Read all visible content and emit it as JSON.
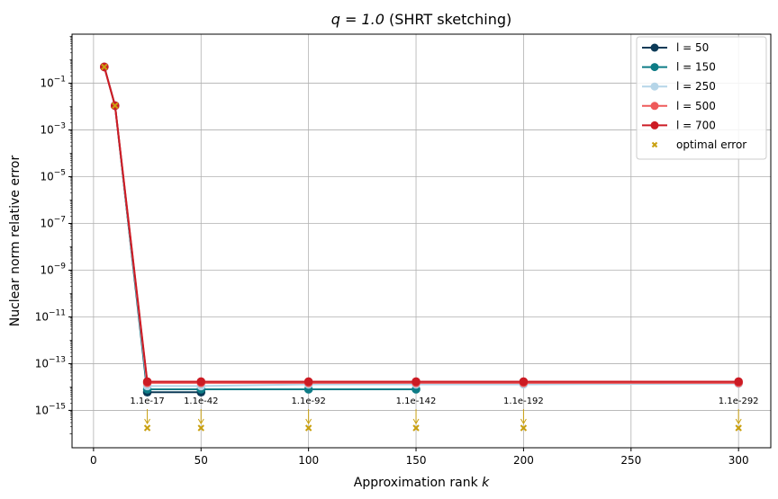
{
  "chart_data": {
    "type": "line",
    "title_prefix": "q = 1.0",
    "title_suffix": " (SHRT sketching)",
    "xlabel_prefix": "Approximation rank ",
    "xlabel_var": "k",
    "ylabel": "Nuclear norm relative error",
    "xlim": [
      -10,
      315
    ],
    "ylim_log10": [
      -16.6,
      1.1
    ],
    "yscale": "log",
    "grid": true,
    "legend_position": "top-right",
    "x_ticks": [
      0,
      50,
      100,
      150,
      200,
      250,
      300
    ],
    "y_tick_exponents": [
      -15,
      -13,
      -11,
      -9,
      -7,
      -5,
      -3,
      -1
    ],
    "x": [
      5,
      10,
      25,
      50,
      100,
      150,
      200,
      300
    ],
    "series": [
      {
        "name": "l = 50",
        "color": "#0b3a57",
        "values": [
          0.5,
          0.011,
          6e-15,
          6e-15,
          null,
          null,
          null,
          null
        ]
      },
      {
        "name": "l = 150",
        "color": "#0e7c86",
        "values": [
          0.5,
          0.011,
          8e-15,
          8e-15,
          8e-15,
          8e-15,
          null,
          null
        ]
      },
      {
        "name": "l = 250",
        "color": "#b5d5e8",
        "values": [
          0.5,
          0.011,
          1.1e-14,
          1.1e-14,
          1.3e-14,
          1.3e-14,
          1.3e-14,
          1.4e-14
        ]
      },
      {
        "name": "l = 500",
        "color": "#ee5a5a",
        "values": [
          0.5,
          0.011,
          1.5e-14,
          1.5e-14,
          1.5e-14,
          1.5e-14,
          1.5e-14,
          1.5e-14
        ]
      },
      {
        "name": "l = 700",
        "color": "#cc1b24",
        "values": [
          0.5,
          0.011,
          1.7e-14,
          1.7e-14,
          1.7e-14,
          1.7e-14,
          1.7e-14,
          1.7e-14
        ]
      }
    ],
    "optimal_error": {
      "name": "optimal error",
      "color": "#c9a010",
      "points_visible": [
        {
          "x": 5,
          "value": 0.5
        },
        {
          "x": 10,
          "value": 0.011
        }
      ],
      "offscale_points": [
        {
          "x": 25,
          "label": "1.1e-17"
        },
        {
          "x": 50,
          "label": "1.1e-42"
        },
        {
          "x": 100,
          "label": "1.1e-92"
        },
        {
          "x": 150,
          "label": "1.1e-142"
        },
        {
          "x": 200,
          "label": "1.1e-192"
        },
        {
          "x": 300,
          "label": "1.1e-292"
        }
      ]
    }
  }
}
